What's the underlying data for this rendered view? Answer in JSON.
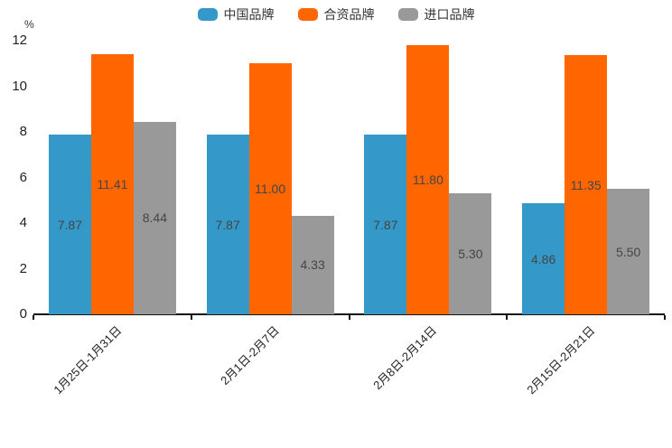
{
  "chart_data": {
    "type": "bar",
    "ylabel": "%",
    "categories": [
      "1月25日-1月31日",
      "2月1日-2月7日",
      "2月8日-2月14日",
      "2月15日-2月21日"
    ],
    "series": [
      {
        "name": "中国品牌",
        "color": "#3499c8",
        "values": [
          7.87,
          7.87,
          7.87,
          4.86
        ]
      },
      {
        "name": "合资品牌",
        "color": "#ff6600",
        "values": [
          11.41,
          11.0,
          11.8,
          11.35
        ]
      },
      {
        "name": "进口品牌",
        "color": "#999999",
        "values": [
          8.44,
          4.33,
          5.3,
          5.5
        ]
      }
    ],
    "ylim": [
      0,
      12
    ],
    "yticks": [
      0,
      2,
      4,
      6,
      8,
      10,
      12
    ],
    "value_labels": true,
    "value_label_decimals": 2,
    "legend_position": "top",
    "grid": false
  }
}
